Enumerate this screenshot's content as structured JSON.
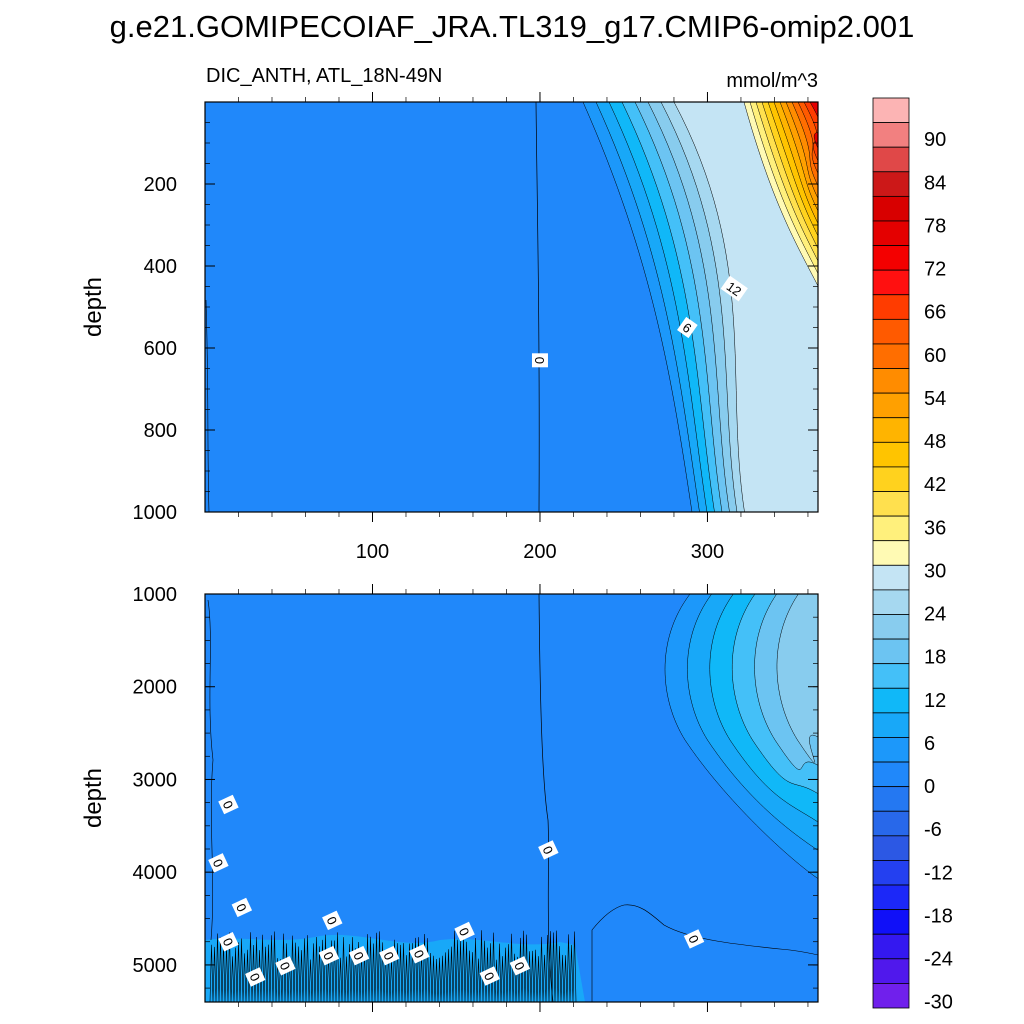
{
  "title": "g.e21.GOMIPECOIAF_JRA.TL319_g17.CMIP6-omip2.001",
  "chart_data": [
    {
      "type": "contour",
      "panel": "upper",
      "title_left": "DIC_ANTH, ATL_18N-49N",
      "units": "mmol/m^3",
      "ylabel": "depth",
      "xlim": [
        0,
        366
      ],
      "ylim": [
        0,
        1000
      ],
      "y_inverted": true,
      "xticks": [
        100,
        200,
        300
      ],
      "yticks": [
        200,
        400,
        600,
        800,
        1000
      ],
      "contour_labels": [
        {
          "text": "0",
          "x": 200,
          "y": 630
        },
        {
          "text": "6",
          "x": 288,
          "y": 550
        },
        {
          "text": "12",
          "x": 316,
          "y": 455
        }
      ]
    },
    {
      "type": "contour",
      "panel": "lower",
      "ylabel": "depth",
      "xlim": [
        0,
        366
      ],
      "ylim": [
        1000,
        5400
      ],
      "y_inverted": true,
      "xticks": [
        100,
        200,
        300
      ],
      "yticks": [
        1000,
        2000,
        3000,
        4000,
        5000
      ],
      "contour_labels": [
        {
          "text": "0",
          "x": 14,
          "y": 3270
        },
        {
          "text": "0",
          "x": 8,
          "y": 3900
        },
        {
          "text": "0",
          "x": 22,
          "y": 4380
        },
        {
          "text": "0",
          "x": 14,
          "y": 4750
        },
        {
          "text": "0",
          "x": 30,
          "y": 5130
        },
        {
          "text": "0",
          "x": 48,
          "y": 5010
        },
        {
          "text": "0",
          "x": 76,
          "y": 4520
        },
        {
          "text": "0",
          "x": 74,
          "y": 4900
        },
        {
          "text": "0",
          "x": 92,
          "y": 4900
        },
        {
          "text": "0",
          "x": 110,
          "y": 4900
        },
        {
          "text": "0",
          "x": 128,
          "y": 4880
        },
        {
          "text": "0",
          "x": 155,
          "y": 4640
        },
        {
          "text": "0",
          "x": 170,
          "y": 5120
        },
        {
          "text": "0",
          "x": 188,
          "y": 5010
        },
        {
          "text": "0",
          "x": 205,
          "y": 3760
        },
        {
          "text": "0",
          "x": 292,
          "y": 4720
        }
      ]
    }
  ],
  "colorbar": {
    "labels": [
      "90",
      "84",
      "78",
      "72",
      "66",
      "60",
      "54",
      "48",
      "42",
      "36",
      "30",
      "24",
      "18",
      "12",
      "6",
      "0",
      "-6",
      "-12",
      "-18",
      "-24",
      "-30"
    ],
    "colors": [
      "#fcb4b4",
      "#f28080",
      "#e04848",
      "#cc1818",
      "#d80000",
      "#e40000",
      "#f40000",
      "#ff1010",
      "#ff3c00",
      "#ff5a00",
      "#ff6e00",
      "#ff8c00",
      "#ffa000",
      "#ffb400",
      "#ffc400",
      "#ffd21e",
      "#ffe04e",
      "#fff07c",
      "#fffab4",
      "#c4e4f4",
      "#a6d8f0",
      "#88ccee",
      "#6cc4f2",
      "#44c0f8",
      "#10b8f8",
      "#18a8f8",
      "#1c98fa",
      "#2088fa",
      "#2478f2",
      "#2868ea",
      "#2c58e4",
      "#2440f0",
      "#1c28f8",
      "#1010f8",
      "#3418f0",
      "#5018ec",
      "#7020ec"
    ]
  }
}
